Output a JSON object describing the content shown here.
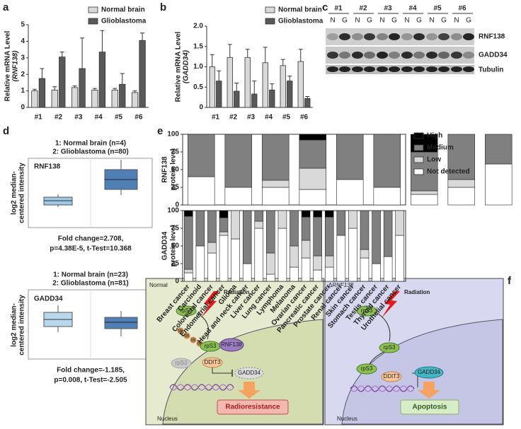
{
  "panel_labels": [
    "a",
    "b",
    "c",
    "d",
    "e",
    "f"
  ],
  "chart_data": [
    {
      "type": "bar",
      "ylabel": "Relative mRNA Level",
      "ylabel_sub": "(RNF138)",
      "categories": [
        "#1",
        "#2",
        "#3",
        "#4",
        "#5",
        "#6"
      ],
      "series": [
        {
          "name": "Normal brain",
          "color": "#d9d9d9",
          "values": [
            1.0,
            1.05,
            1.2,
            1.05,
            1.05,
            0.9
          ],
          "errors": [
            0.1,
            0.2,
            0.1,
            0.1,
            0.1,
            0.1
          ]
        },
        {
          "name": "Glioblastoma",
          "color": "#595959",
          "values": [
            1.75,
            3.05,
            2.35,
            3.35,
            1.4,
            4.05
          ],
          "errors": [
            0.6,
            0.3,
            1.85,
            1.3,
            0.65,
            0.45
          ]
        }
      ],
      "ylim": [
        0,
        5
      ],
      "yticks": [
        0,
        1,
        2,
        3,
        4,
        5
      ]
    },
    {
      "type": "bar",
      "ylabel": "Relative mRNA Level",
      "ylabel_sub": "(GADD34)",
      "categories": [
        "#1",
        "#2",
        "#3",
        "#4",
        "#5",
        "#6"
      ],
      "series": [
        {
          "name": "Normal brain",
          "color": "#d9d9d9",
          "values": [
            1.0,
            1.23,
            1.23,
            1.1,
            1.03,
            1.13
          ],
          "errors": [
            0.3,
            0.32,
            0.2,
            0.38,
            0.15,
            0.3
          ]
        },
        {
          "name": "Glioblastoma",
          "color": "#595959",
          "values": [
            0.65,
            0.4,
            0.33,
            0.43,
            0.65,
            0.22
          ],
          "errors": [
            0.25,
            0.2,
            0.32,
            0.15,
            0.12,
            0.05
          ]
        }
      ],
      "ylim": [
        0,
        2
      ],
      "yticks": [
        0,
        0.5,
        {
          "value": 1,
          "label": "1.0"
        },
        1.5,
        {
          "value": 2,
          "label": "2.0"
        }
      ]
    },
    {
      "type": "stacked-bar",
      "ylabel": "RNF138",
      "ylabel_sub": "protein level",
      "series": [
        {
          "name": "High",
          "color": "#000000",
          "values": [
            0,
            0,
            0,
            8,
            0,
            0,
            25,
            0,
            0,
            8,
            0,
            0,
            8,
            0,
            17,
            8,
            17,
            40,
            0
          ]
        },
        {
          "name": "Medium",
          "color": "#808080",
          "values": [
            60,
            75,
            65,
            40,
            64,
            75,
            55,
            64,
            42,
            75,
            75,
            42,
            55,
            85,
            66,
            75,
            50,
            45,
            45
          ]
        },
        {
          "name": "Low",
          "color": "#d9d9d9",
          "values": [
            0,
            0,
            10,
            30,
            0,
            0,
            5,
            11,
            0,
            0,
            0,
            25,
            25,
            0,
            0,
            5,
            18,
            5,
            18
          ]
        },
        {
          "name": "Not detected",
          "color": "#ffffff",
          "values": [
            40,
            25,
            25,
            22,
            36,
            25,
            15,
            25,
            58,
            17,
            25,
            33,
            12,
            15,
            17,
            12,
            15,
            10,
            37
          ]
        }
      ],
      "ylim": [
        0,
        100
      ],
      "yticks": [
        0,
        25,
        50,
        75,
        100
      ]
    },
    {
      "type": "stacked-bar",
      "ylabel": "GADD34",
      "ylabel_sub": "protein level",
      "categories": [
        "Breast cancer",
        "Carcinoid",
        "Colorectal cancer",
        "Endometrial cancer",
        "Glioma",
        "Head and neck cancer",
        "Liver cancer",
        "Lung cancer",
        "Lymphoma",
        "Melanoma",
        "Ovarian cancer",
        "Pancreatic cancer",
        "Prostate cancer",
        "Renal cancer",
        "Skin cancer",
        "Stomach cancer",
        "Testis cancer",
        "Thyroid cancer",
        "Urothelial cancer"
      ],
      "series": [
        {
          "color": "#000000",
          "values": [
            8,
            0,
            0,
            10,
            0,
            0,
            0,
            0,
            0,
            0,
            9,
            9,
            9,
            0,
            0,
            0,
            0,
            0,
            0
          ]
        },
        {
          "color": "#808080",
          "values": [
            75,
            50,
            45,
            20,
            0,
            75,
            15,
            60,
            0,
            50,
            33,
            55,
            55,
            35,
            0,
            55,
            75,
            65,
            0
          ]
        },
        {
          "color": "#d9d9d9",
          "values": [
            5,
            0,
            15,
            5,
            40,
            0,
            10,
            30,
            25,
            30,
            25,
            20,
            16,
            0,
            25,
            12,
            0,
            0,
            35
          ]
        },
        {
          "color": "#ffffff",
          "values": [
            12,
            50,
            40,
            65,
            60,
            25,
            75,
            10,
            75,
            20,
            33,
            16,
            20,
            65,
            75,
            33,
            25,
            35,
            65
          ]
        }
      ],
      "ylim": [
        0,
        100
      ],
      "yticks": [
        0,
        25,
        50,
        75,
        100
      ]
    }
  ],
  "blot": {
    "samples": [
      "#1",
      "#2",
      "#3",
      "#4",
      "#5",
      "#6"
    ],
    "lanes": [
      "N",
      "G"
    ],
    "proteins": [
      "RNF138",
      "GADD34",
      "Tubulin"
    ]
  },
  "oncomine": [
    {
      "groups": [
        "1: Normal brain (n=4)",
        "2: Glioblastoma (n=80)"
      ],
      "gene": "RNF138",
      "ylabel": [
        "log2 median-",
        "centered intensity"
      ],
      "stats": [
        "Fold change=2.708,",
        "p=4.38E-5, t-Test=10.368"
      ]
    },
    {
      "groups": [
        "1: Normal brain (n=23)",
        "2: Glioblastoma (n=81)"
      ],
      "gene": "GADD34",
      "ylabel": [
        "log2 median-",
        "centered intensity"
      ],
      "stats": [
        "Fold change=-1.185,",
        "p=0.008, t-Test=-2.505"
      ]
    }
  ],
  "diagram": {
    "left": {
      "title": "Normal",
      "radiation": "Radiation",
      "rps3": "rpS3",
      "ub": "Ub",
      "rnf138": "RNF138",
      "ddit3": "DDIT3",
      "gadd34": "GADD34",
      "nucleus": "Nucleus",
      "outcome": "Radioresistance"
    },
    "right": {
      "title_prefix": "Δ",
      "title_gene": "RNF138",
      "radiation": "Radiation",
      "rps3": "rpS3",
      "ddit3": "DDIT3",
      "gadd34": "GADD34",
      "nucleus": "Nucleus",
      "outcome": "Apoptosis"
    }
  }
}
